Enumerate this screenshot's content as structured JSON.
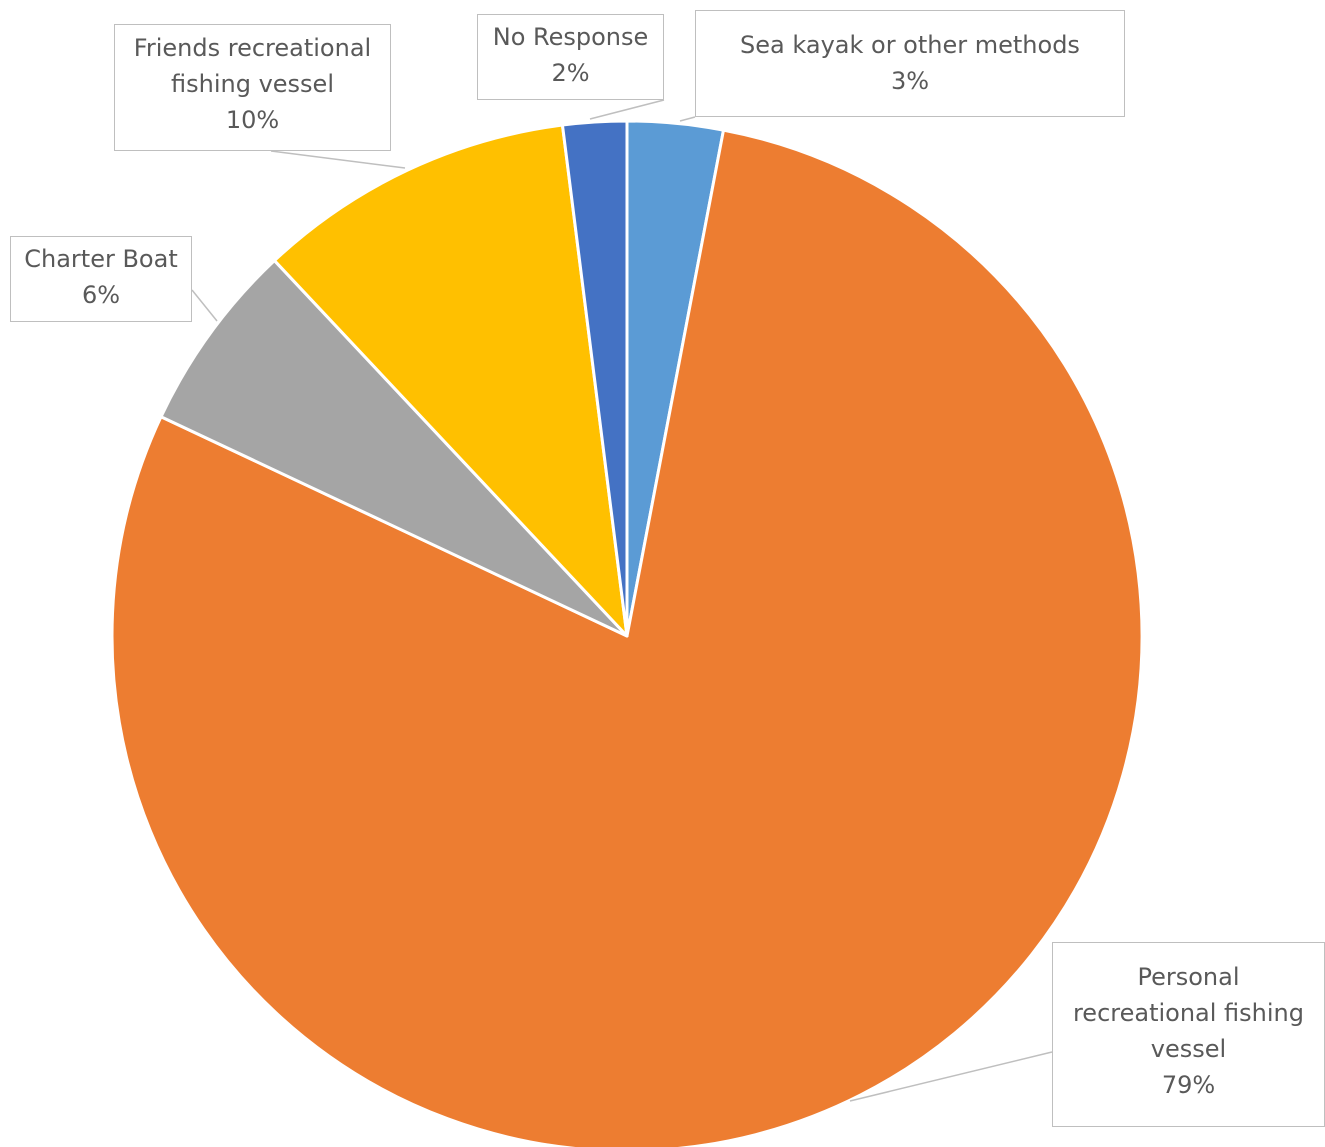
{
  "chart_data": {
    "type": "pie",
    "title": "",
    "legend": "none",
    "slices": [
      {
        "label_lines": [
          "Sea kayak or other methods"
        ],
        "value": 3,
        "value_label": "3%",
        "color": "#5B9BD5"
      },
      {
        "label_lines": [
          "Personal",
          "recreational fishing",
          "vessel"
        ],
        "value": 79,
        "value_label": "79%",
        "color": "#ED7D31"
      },
      {
        "label_lines": [
          "Charter Boat"
        ],
        "value": 6,
        "value_label": "6%",
        "color": "#A5A5A5"
      },
      {
        "label_lines": [
          "Friends recreational",
          "fishing vessel"
        ],
        "value": 10,
        "value_label": "10%",
        "color": "#FFC000"
      },
      {
        "label_lines": [
          "No Response"
        ],
        "value": 2,
        "value_label": "2%",
        "color": "#4472C4"
      }
    ]
  }
}
